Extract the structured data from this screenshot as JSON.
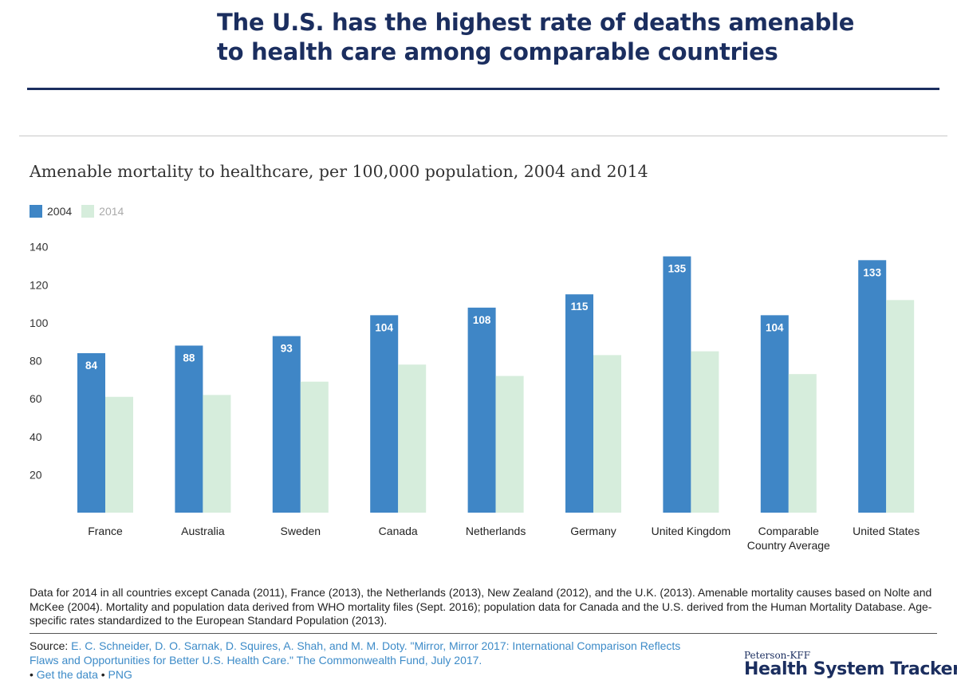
{
  "headline": {
    "line1": "The U.S. has the highest rate of deaths amenable",
    "line2": "to health care among comparable countries"
  },
  "colors": {
    "series_2004": "#3f86c6",
    "series_2014": "#d6eddc",
    "navy": "#1b2e5f",
    "link": "#3d8bc8"
  },
  "chart_data": {
    "type": "bar",
    "title": "Amenable mortality to healthcare, per 100,000 population, 2004 and 2014",
    "xlabel": "",
    "ylabel": "",
    "ylim": [
      0,
      140
    ],
    "yticks": [
      20,
      40,
      60,
      80,
      100,
      120,
      140
    ],
    "grid": false,
    "legend_position": "top-left",
    "categories": [
      [
        "France"
      ],
      [
        "Australia"
      ],
      [
        "Sweden"
      ],
      [
        "Canada"
      ],
      [
        "Netherlands"
      ],
      [
        "Germany"
      ],
      [
        "United Kingdom"
      ],
      [
        "Comparable",
        "Country Average"
      ],
      [
        "United States"
      ]
    ],
    "series": [
      {
        "name": "2004",
        "values": [
          84,
          88,
          93,
          104,
          108,
          115,
          135,
          104,
          133
        ],
        "show_labels": true
      },
      {
        "name": "2014",
        "values": [
          61,
          62,
          69,
          78,
          72,
          83,
          85,
          73,
          112
        ],
        "show_labels": false
      }
    ]
  },
  "footnote": "Data for 2014 in all countries except Canada (2011), France (2013), the Netherlands (2013), New Zealand (2012),  and the U.K. (2013). Amenable mortality causes based on Nolte and McKee (2004). Mortality and population data derived from WHO mortality files (Sept. 2016); population data for Canada and the U.S. derived from the Human Mortality Database. Age-specific rates standardized to the European Standard Population (2013).",
  "source": {
    "label": "Source:",
    "citation": "E. C. Schneider, D. O. Sarnak, D. Squires, A. Shah, and M. M. Doty. \"Mirror, Mirror 2017: International Comparison Reflects Flaws and Opportunities for Better U.S. Health Care.\" The Commonwealth Fund, July 2017.",
    "bullet": "•",
    "get_data": "Get the data",
    "png": "PNG"
  },
  "brand": {
    "small": "Peterson-KFF",
    "big": "Health System Tracker"
  }
}
